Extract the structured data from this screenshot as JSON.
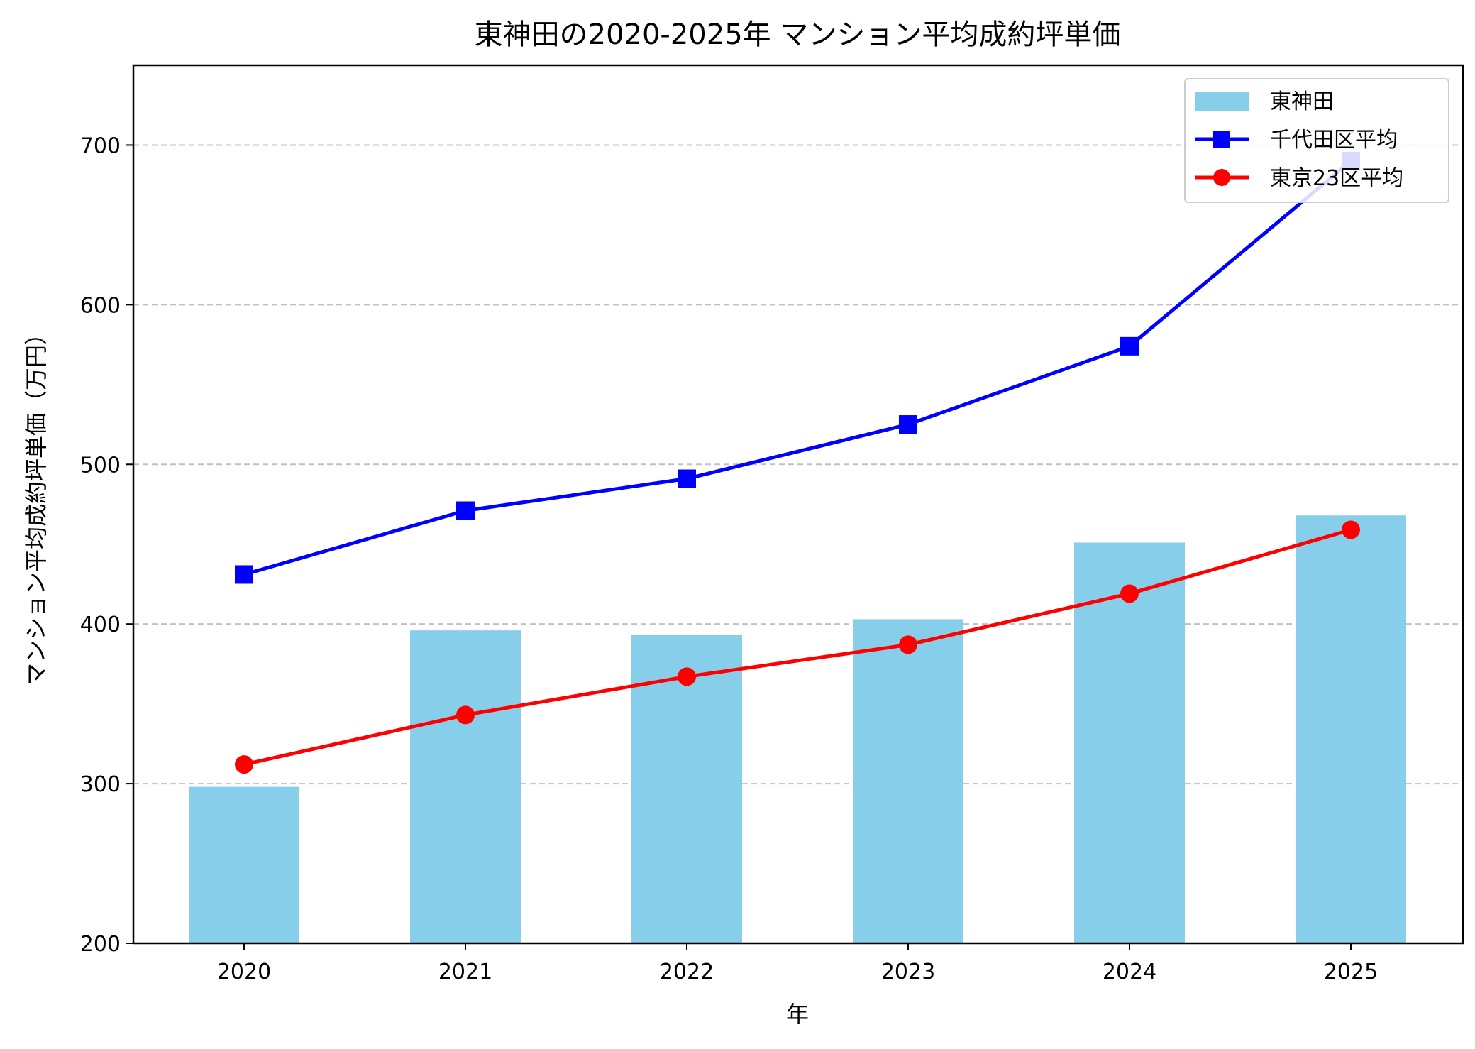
{
  "chart_data": {
    "type": "bar+line",
    "title": "東神田の2020-2025年 マンション平均成約坪単価",
    "xlabel": "年",
    "ylabel": "マンション平均成約坪単価（万円）",
    "categories": [
      "2020",
      "2021",
      "2022",
      "2023",
      "2024",
      "2025"
    ],
    "ylim": [
      200,
      750
    ],
    "yticks": [
      200,
      300,
      400,
      500,
      600,
      700
    ],
    "grid": "y dashed",
    "legend_position": "top-right",
    "series": [
      {
        "name": "東神田",
        "kind": "bar",
        "color": "#87ceeb",
        "values": [
          298,
          396,
          393,
          403,
          451,
          468
        ]
      },
      {
        "name": "千代田区平均",
        "kind": "line",
        "marker": "square",
        "color": "#0000ff",
        "values": [
          431,
          471,
          491,
          525,
          574,
          690
        ]
      },
      {
        "name": "東京23区平均",
        "kind": "line",
        "marker": "circle",
        "color": "#ff0000",
        "values": [
          312,
          343,
          367,
          387,
          419,
          459
        ]
      }
    ]
  }
}
